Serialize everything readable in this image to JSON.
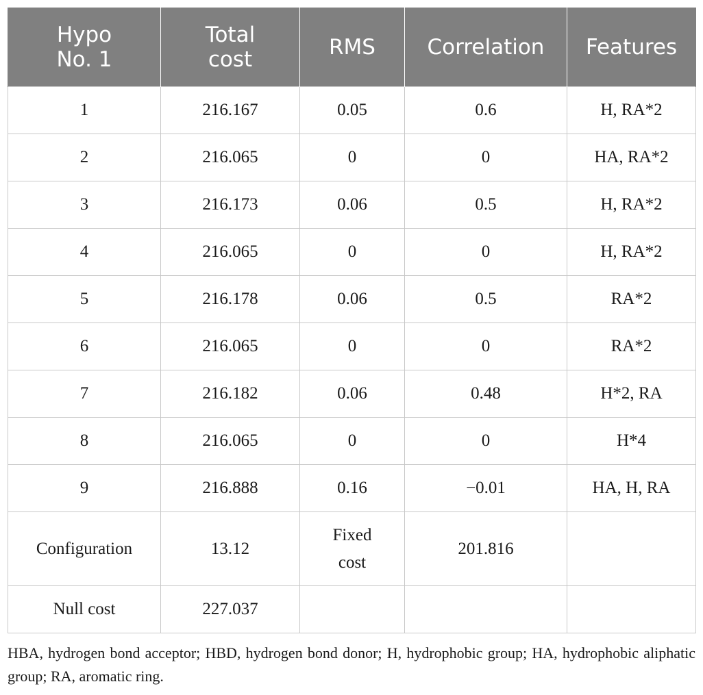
{
  "table": {
    "headers": [
      [
        "Hypo",
        "No. 1"
      ],
      [
        "Total",
        "cost"
      ],
      [
        "RMS"
      ],
      [
        "Correlation"
      ],
      [
        "Features"
      ]
    ],
    "rows": [
      [
        "1",
        "216.167",
        "0.05",
        "0.6",
        "H, RA*2"
      ],
      [
        "2",
        "216.065",
        "0",
        "0",
        "HA, RA*2"
      ],
      [
        "3",
        "216.173",
        "0.06",
        "0.5",
        "H, RA*2"
      ],
      [
        "4",
        "216.065",
        "0",
        "0",
        "H, RA*2"
      ],
      [
        "5",
        "216.178",
        "0.06",
        "0.5",
        "RA*2"
      ],
      [
        "6",
        "216.065",
        "0",
        "0",
        "RA*2"
      ],
      [
        "7",
        "216.182",
        "0.06",
        "0.48",
        "H*2, RA"
      ],
      [
        "8",
        "216.065",
        "0",
        "0",
        "H*4"
      ],
      [
        "9",
        "216.888",
        "0.16",
        "−0.01",
        "HA, H, RA"
      ]
    ],
    "configuration_row": {
      "label": "Configuration",
      "total_cost": "13.12",
      "fixed_cost_label": [
        "Fixed",
        "cost"
      ],
      "fixed_cost_value": "201.816",
      "features": ""
    },
    "null_cost_row": {
      "label": "Null cost",
      "total_cost": "227.037"
    }
  },
  "footnote": "HBA, hydrogen bond acceptor; HBD, hydrogen bond donor; H, hydrophobic group; HA, hydrophobic aliphatic group; RA, aromatic ring."
}
